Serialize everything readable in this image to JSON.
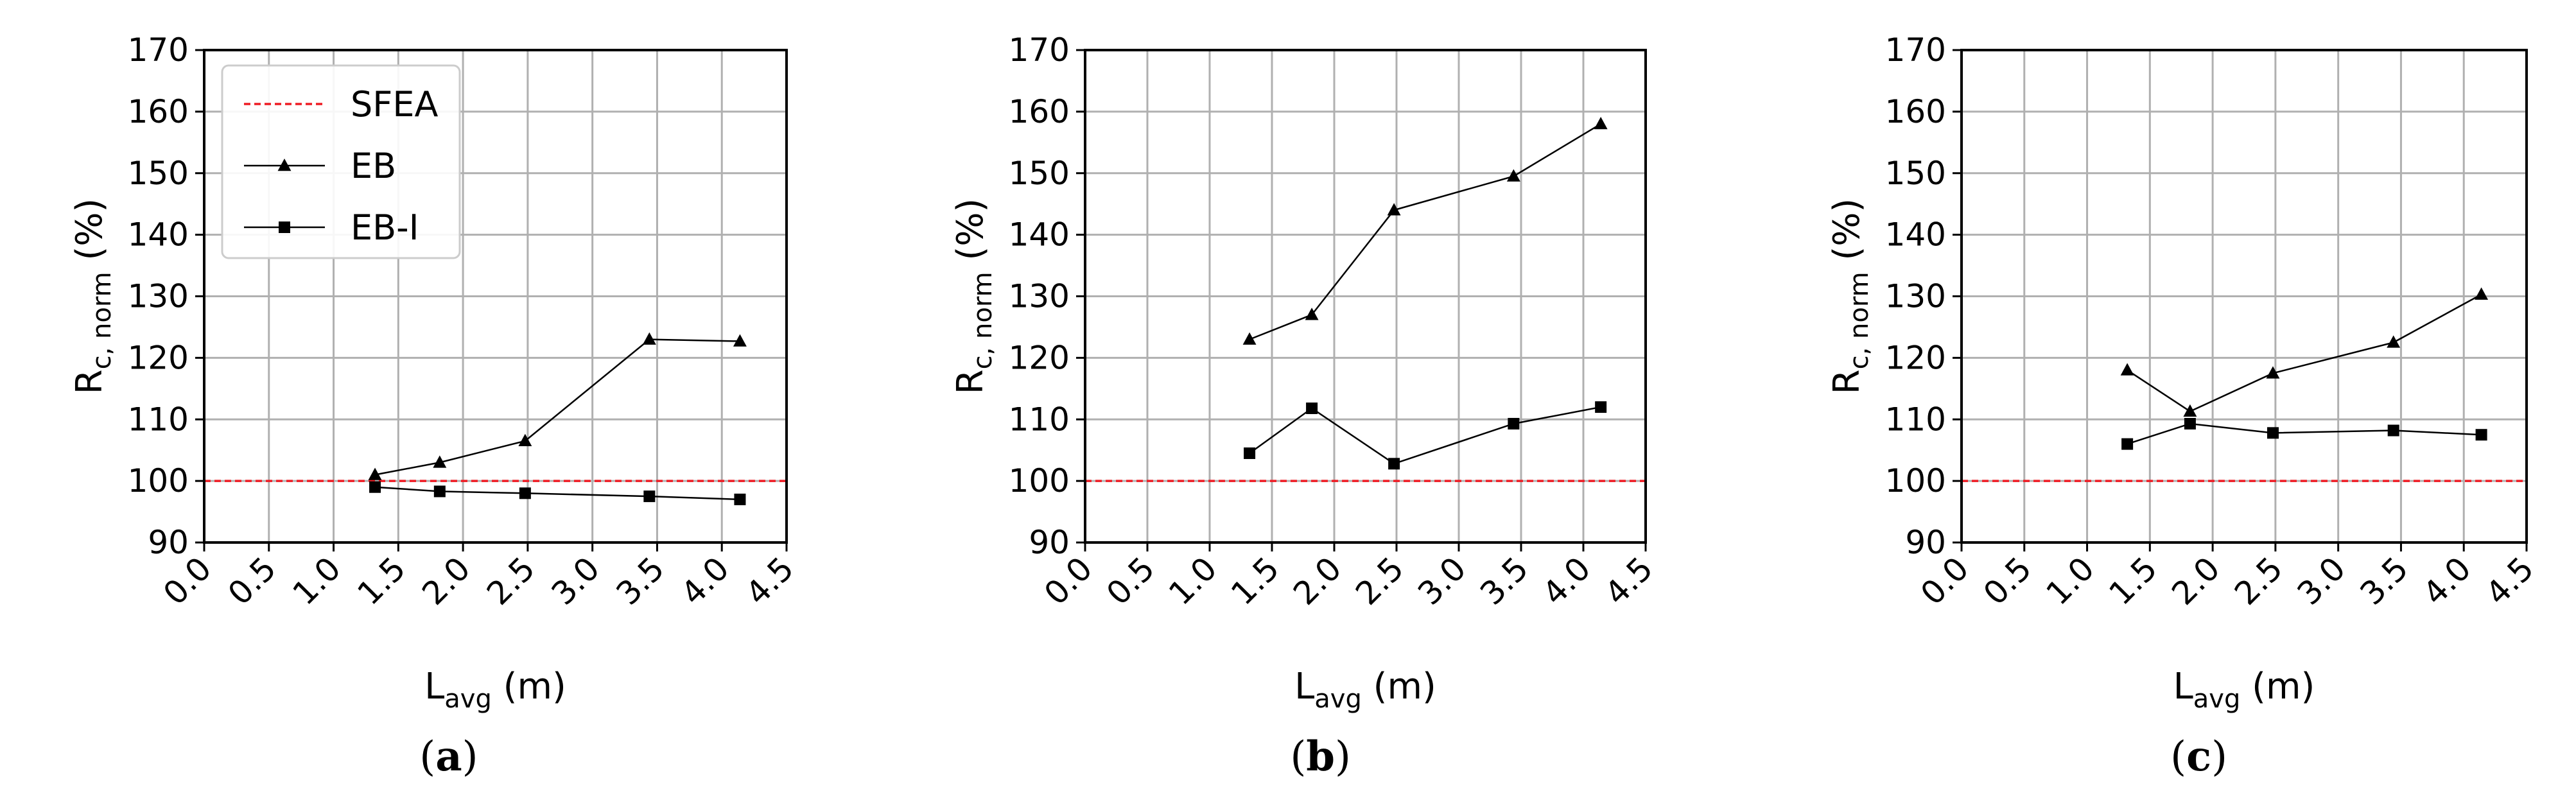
{
  "colors": {
    "sfea": "#ee1c24",
    "series": "#000000",
    "grid": "#b0b0b0",
    "legend_border": "#cccccc"
  },
  "legend": [
    {
      "label": "SFEA",
      "style": "dashed-red"
    },
    {
      "label": "EB",
      "marker": "triangle"
    },
    {
      "label": "EB-I",
      "marker": "square"
    }
  ],
  "chart_data": [
    {
      "type": "line",
      "panel": "a",
      "caption": {
        "open": "(",
        "letter": "a",
        "close": ")"
      },
      "xlabel": {
        "main": "L",
        "sub": "avg",
        "unit": " (m)"
      },
      "ylabel": {
        "main": "R",
        "sub": "c, norm",
        "unit": " (%)"
      },
      "xlim": [
        0.0,
        4.5
      ],
      "ylim": [
        90,
        170
      ],
      "xticks": [
        "0.0",
        "0.5",
        "1.0",
        "1.5",
        "2.0",
        "2.5",
        "3.0",
        "3.5",
        "4.0",
        "4.5"
      ],
      "yticks": [
        "90",
        "100",
        "110",
        "120",
        "130",
        "140",
        "150",
        "160",
        "170"
      ],
      "grid": true,
      "show_legend": true,
      "reference": {
        "name": "SFEA",
        "y": 100
      },
      "x": [
        1.32,
        1.82,
        2.48,
        3.44,
        4.14
      ],
      "series": [
        {
          "name": "EB",
          "marker": "triangle",
          "values": [
            101.0,
            103.0,
            106.5,
            123.0,
            122.7
          ]
        },
        {
          "name": "EB-I",
          "marker": "square",
          "values": [
            99.0,
            98.3,
            98.0,
            97.5,
            97.0
          ]
        }
      ]
    },
    {
      "type": "line",
      "panel": "b",
      "caption": {
        "open": "(",
        "letter": "b",
        "close": ")"
      },
      "xlabel": {
        "main": "L",
        "sub": "avg",
        "unit": " (m)"
      },
      "ylabel": {
        "main": "R",
        "sub": "c, norm",
        "unit": " (%)"
      },
      "xlim": [
        0.0,
        4.5
      ],
      "ylim": [
        90,
        170
      ],
      "xticks": [
        "0.0",
        "0.5",
        "1.0",
        "1.5",
        "2.0",
        "2.5",
        "3.0",
        "3.5",
        "4.0",
        "4.5"
      ],
      "yticks": [
        "90",
        "100",
        "110",
        "120",
        "130",
        "140",
        "150",
        "160",
        "170"
      ],
      "grid": true,
      "show_legend": false,
      "reference": {
        "name": "SFEA",
        "y": 100
      },
      "x": [
        1.32,
        1.82,
        2.48,
        3.44,
        4.14
      ],
      "series": [
        {
          "name": "EB",
          "marker": "triangle",
          "values": [
            123.0,
            127.0,
            144.0,
            149.5,
            158.0
          ]
        },
        {
          "name": "EB-I",
          "marker": "square",
          "values": [
            104.5,
            111.8,
            102.8,
            109.3,
            112.0
          ]
        }
      ]
    },
    {
      "type": "line",
      "panel": "c",
      "caption": {
        "open": "(",
        "letter": "c",
        "close": ")"
      },
      "xlabel": {
        "main": "L",
        "sub": "avg",
        "unit": " (m)"
      },
      "ylabel": {
        "main": "R",
        "sub": "c, norm",
        "unit": " (%)"
      },
      "xlim": [
        0.0,
        4.5
      ],
      "ylim": [
        90,
        170
      ],
      "xticks": [
        "0.0",
        "0.5",
        "1.0",
        "1.5",
        "2.0",
        "2.5",
        "3.0",
        "3.5",
        "4.0",
        "4.5"
      ],
      "yticks": [
        "90",
        "100",
        "110",
        "120",
        "130",
        "140",
        "150",
        "160",
        "170"
      ],
      "grid": true,
      "show_legend": false,
      "reference": {
        "name": "SFEA",
        "y": 100
      },
      "x": [
        1.32,
        1.82,
        2.48,
        3.44,
        4.14
      ],
      "series": [
        {
          "name": "EB",
          "marker": "triangle",
          "values": [
            118.0,
            111.3,
            117.5,
            122.5,
            130.3
          ]
        },
        {
          "name": "EB-I",
          "marker": "square",
          "values": [
            106.0,
            109.3,
            107.8,
            108.2,
            107.5
          ]
        }
      ]
    }
  ]
}
